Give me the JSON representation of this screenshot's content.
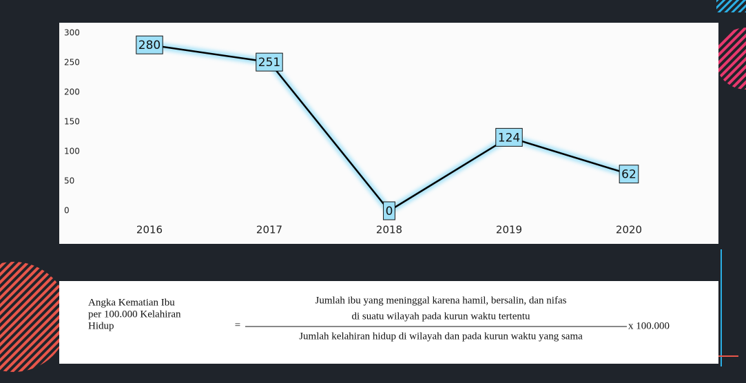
{
  "chart_data": {
    "type": "line",
    "categories": [
      "2016",
      "2017",
      "2018",
      "2019",
      "2020"
    ],
    "values": [
      280,
      251,
      0,
      124,
      62
    ],
    "color": "#000000",
    "label_color": "#9fe0f7",
    "ylim": [
      0,
      300
    ],
    "yticks": [
      0,
      50,
      100,
      150,
      200,
      250,
      300
    ]
  },
  "formula": {
    "left": [
      "Angka Kematian  Ibu",
      "per 100.000 Kelahiran",
      "Hidup"
    ],
    "equals": "=",
    "numerator": [
      "Jumlah ibu yang meninggal  karena hamil, bersalin, dan nifas",
      "di suatu wilayah pada kurun waktu tertentu"
    ],
    "denominator": "Jumlah kelahiran hidup di wilayah dan pada kurun waktu yang sama",
    "multiplier": "x 100.000"
  }
}
